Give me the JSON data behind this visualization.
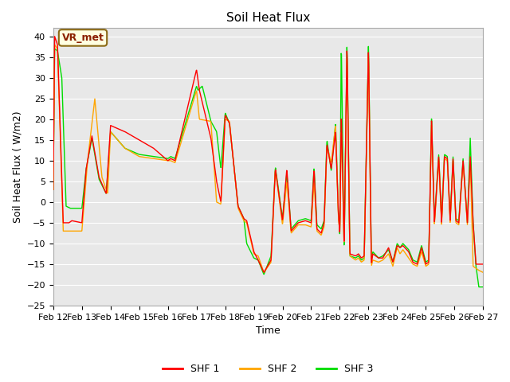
{
  "title": "Soil Heat Flux",
  "ylabel": "Soil Heat Flux ( W/m2)",
  "xlabel": "Time",
  "ylim": [
    -25,
    42
  ],
  "yticks": [
    -25,
    -20,
    -15,
    -10,
    -5,
    0,
    5,
    10,
    15,
    20,
    25,
    30,
    35,
    40
  ],
  "x_labels": [
    "Feb 12",
    "Feb 13",
    "Feb 14",
    "Feb 15",
    "Feb 16",
    "Feb 17",
    "Feb 18",
    "Feb 19",
    "Feb 20",
    "Feb 21",
    "Feb 22",
    "Feb 23",
    "Feb 24",
    "Feb 25",
    "Feb 26",
    "Feb 27"
  ],
  "colors": {
    "SHF 1": "#FF0000",
    "SHF 2": "#FFA500",
    "SHF 3": "#00DD00"
  },
  "annotation_text": "VR_met",
  "background_color": "#E8E8E8",
  "grid_color": "#FFFFFF"
}
